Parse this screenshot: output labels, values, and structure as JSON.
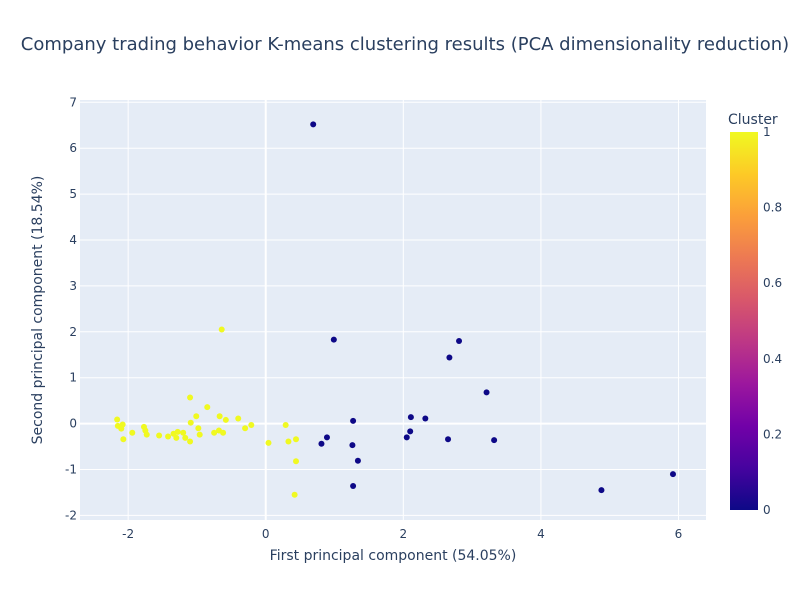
{
  "chart_data": {
    "type": "scatter",
    "title": "Company trading behavior K-means clustering results (PCA dimensionality reduction)",
    "xlabel": "First principal component (54.05%)",
    "ylabel": "Second principal component (18.54%)",
    "xlim": [
      -2.7,
      6.4
    ],
    "ylim": [
      -2.1,
      7.05
    ],
    "x_ticks": [
      -2,
      0,
      2,
      4,
      6
    ],
    "y_ticks": [
      -2,
      -1,
      0,
      1,
      2,
      3,
      4,
      5,
      6,
      7
    ],
    "grid": true,
    "colorbar": {
      "title": "Cluster",
      "range": [
        0,
        1
      ],
      "ticks": [
        0,
        0.2,
        0.4,
        0.6,
        0.8,
        1
      ],
      "tick_labels": [
        "0",
        "0.2",
        "0.4",
        "0.6",
        "0.8",
        "1"
      ],
      "colorscale": [
        "#0d0887",
        "#46039f",
        "#7201a8",
        "#9c179e",
        "#bd3786",
        "#d8576b",
        "#ed7953",
        "#fb9f3a",
        "#fdca26",
        "#f0f921"
      ]
    },
    "series": [
      {
        "cluster": 0,
        "color": "#0d0887",
        "points": [
          [
            0.69,
            6.52
          ],
          [
            0.99,
            1.83
          ],
          [
            2.81,
            1.8
          ],
          [
            2.67,
            1.44
          ],
          [
            3.21,
            0.68
          ],
          [
            2.11,
            0.14
          ],
          [
            2.32,
            0.11
          ],
          [
            1.27,
            0.06
          ],
          [
            2.1,
            -0.17
          ],
          [
            2.05,
            -0.3
          ],
          [
            0.89,
            -0.3
          ],
          [
            2.65,
            -0.34
          ],
          [
            3.32,
            -0.36
          ],
          [
            0.81,
            -0.44
          ],
          [
            1.26,
            -0.47
          ],
          [
            1.34,
            -0.81
          ],
          [
            1.27,
            -1.36
          ],
          [
            4.88,
            -1.45
          ],
          [
            5.92,
            -1.1
          ]
        ]
      },
      {
        "cluster": 1,
        "color": "#f0f921",
        "points": [
          [
            -0.64,
            2.05
          ],
          [
            -1.1,
            0.57
          ],
          [
            -0.85,
            0.36
          ],
          [
            -1.01,
            0.16
          ],
          [
            -0.67,
            0.16
          ],
          [
            -0.4,
            0.11
          ],
          [
            -0.58,
            0.08
          ],
          [
            -2.16,
            0.09
          ],
          [
            -2.08,
            -0.02
          ],
          [
            -2.15,
            -0.05
          ],
          [
            -1.09,
            0.02
          ],
          [
            -0.21,
            -0.03
          ],
          [
            0.29,
            -0.03
          ],
          [
            -1.77,
            -0.07
          ],
          [
            -2.1,
            -0.11
          ],
          [
            -0.98,
            -0.1
          ],
          [
            -0.3,
            -0.1
          ],
          [
            -1.75,
            -0.15
          ],
          [
            -1.28,
            -0.18
          ],
          [
            -0.68,
            -0.15
          ],
          [
            -1.94,
            -0.2
          ],
          [
            -0.75,
            -0.2
          ],
          [
            -1.34,
            -0.22
          ],
          [
            -1.2,
            -0.2
          ],
          [
            -0.62,
            -0.2
          ],
          [
            -1.73,
            -0.24
          ],
          [
            -0.96,
            -0.24
          ],
          [
            -1.55,
            -0.26
          ],
          [
            -1.42,
            -0.28
          ],
          [
            -1.3,
            -0.31
          ],
          [
            -1.17,
            -0.31
          ],
          [
            -2.07,
            -0.34
          ],
          [
            0.44,
            -0.34
          ],
          [
            -1.1,
            -0.39
          ],
          [
            0.33,
            -0.39
          ],
          [
            0.04,
            -0.42
          ],
          [
            0.44,
            -0.82
          ],
          [
            0.42,
            -1.55
          ]
        ]
      }
    ]
  }
}
